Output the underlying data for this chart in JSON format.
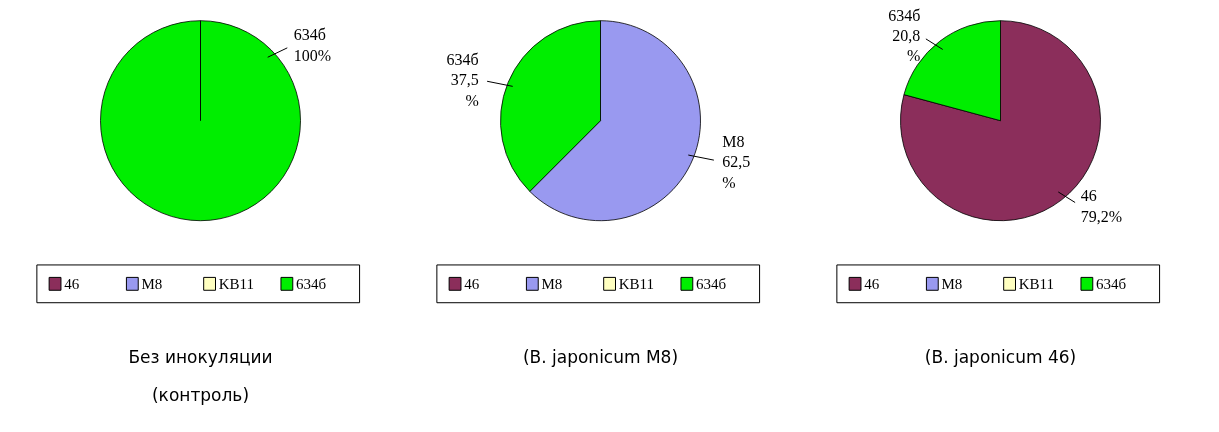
{
  "chart_data": [
    {
      "type": "pie",
      "title": "Без инокуляции\n(контроль)",
      "categories": [
        "46",
        "M8",
        "KB11",
        "634б"
      ],
      "values": [
        0,
        0,
        0,
        100
      ],
      "colors": [
        "#8b2e5b",
        "#9999f0",
        "#ffffc0",
        "#00ee00"
      ],
      "value_labels": [
        null,
        null,
        null,
        "100%"
      ],
      "legend": "bottom"
    },
    {
      "type": "pie",
      "title": "(B. japonicum M8)",
      "categories": [
        "46",
        "M8",
        "KB11",
        "634б"
      ],
      "values": [
        0,
        62.5,
        0,
        37.5
      ],
      "colors": [
        "#8b2e5b",
        "#9999f0",
        "#ffffc0",
        "#00ee00"
      ],
      "value_labels": [
        null,
        "62,5\n%",
        null,
        "37,5\n%"
      ],
      "legend": "bottom"
    },
    {
      "type": "pie",
      "title": "(B. japonicum 46)",
      "categories": [
        "46",
        "M8",
        "KB11",
        "634б"
      ],
      "values": [
        79.2,
        0,
        0,
        20.8
      ],
      "colors": [
        "#8b2e5b",
        "#9999f0",
        "#ffffc0",
        "#00ee00"
      ],
      "value_labels": [
        "79,2%",
        null,
        null,
        "20,8\n%"
      ],
      "legend": "bottom"
    }
  ]
}
